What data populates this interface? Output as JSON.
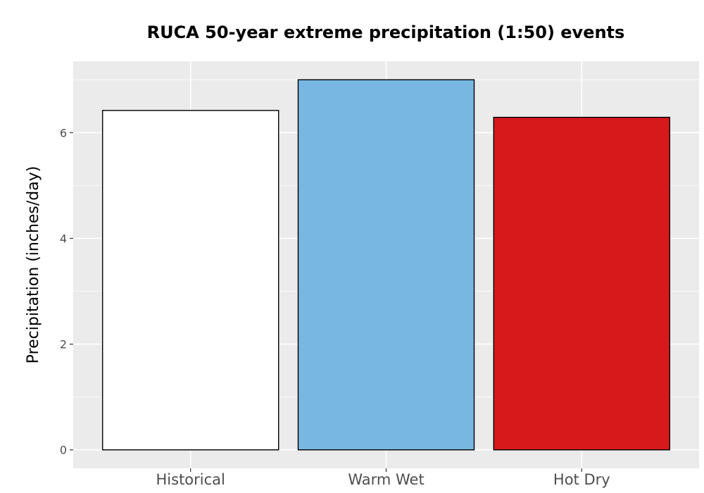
{
  "chart_data": {
    "type": "bar",
    "title": "RUCA 50-year extreme precipitation (1:50) events",
    "xlabel": "",
    "ylabel": "Precipitation (inches/day)",
    "categories": [
      "Historical",
      "Warm Wet",
      "Hot Dry"
    ],
    "values": [
      6.42,
      7.0,
      6.29
    ],
    "bar_colors": [
      "#ffffff",
      "#78b7e1",
      "#d7191c"
    ],
    "bar_outline_color": "#000000",
    "ylim": [
      -0.35,
      7.35
    ],
    "yticks": [
      0,
      2,
      4,
      6
    ],
    "ytick_labels": [
      "0",
      "2",
      "4",
      "6"
    ],
    "grid": true,
    "panel_background": "#ebebeb",
    "grid_color": "#ffffff",
    "legend": "none"
  }
}
